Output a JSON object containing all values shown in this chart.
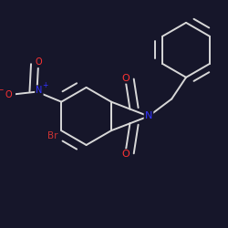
{
  "background_color": "#16162a",
  "bond_color": "#d8d8d8",
  "atom_colors": {
    "O": "#ff3333",
    "N_imide": "#3333ff",
    "N_nitro": "#3333ff",
    "Br": "#cc3333",
    "C": "#d8d8d8"
  },
  "figsize": [
    2.5,
    2.5
  ],
  "dpi": 100,
  "lw": 1.4
}
